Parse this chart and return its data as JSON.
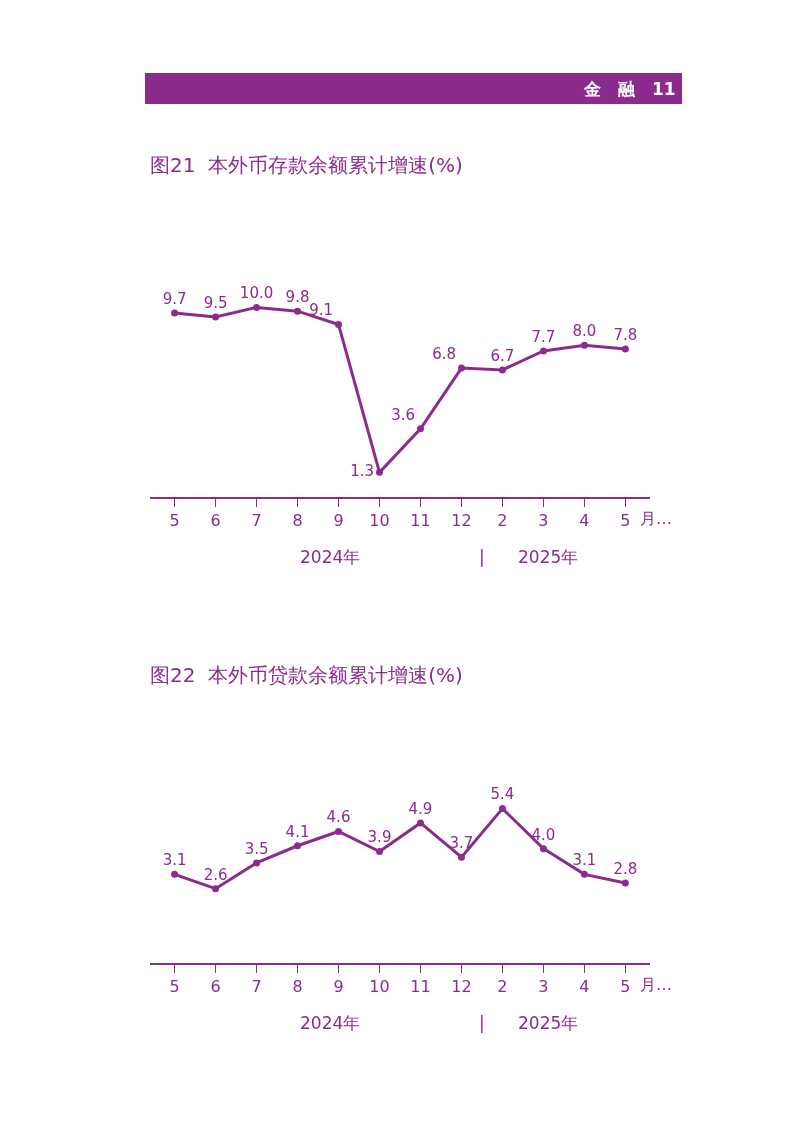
{
  "chart_data": [
    {
      "type": "other",
      "title": "金　融　11",
      "color": "#8b2c8c"
    },
    {
      "type": "line",
      "title": "图21  本外币存款余额累计增速(%)",
      "xlabel": "月…",
      "categories": [
        "5",
        "6",
        "7",
        "8",
        "9",
        "10",
        "11",
        "12",
        "2",
        "3",
        "4",
        "5"
      ],
      "series": [
        {
          "color": "#8b2c8c",
          "values": [
            9.7,
            9.5,
            10.0,
            9.8,
            9.1,
            1.3,
            3.6,
            6.8,
            6.7,
            7.7,
            8.0,
            7.8
          ],
          "value_labels": [
            "9.7",
            "9.5",
            "10.0",
            "9.8",
            "9.1",
            "1.3",
            "3.6",
            "6.8",
            "6.7",
            "7.7",
            "8.0",
            "7.8"
          ]
        }
      ],
      "marker": "circle",
      "line_style": "solid",
      "tick_labels": "x",
      "annotations": [
        "2024年",
        "|",
        "2025年"
      ]
    },
    {
      "type": "line",
      "title": "图22  本外币贷款余额累计增速(%)",
      "xlabel": "月…",
      "categories": [
        "5",
        "6",
        "7",
        "8",
        "9",
        "10",
        "11",
        "12",
        "2",
        "3",
        "4",
        "5"
      ],
      "series": [
        {
          "color": "#8b2c8c",
          "values": [
            3.1,
            2.6,
            3.5,
            4.1,
            4.6,
            3.9,
            4.9,
            3.7,
            5.4,
            4.0,
            3.1,
            2.8
          ],
          "value_labels": [
            "3.1",
            "2.6",
            "3.5",
            "4.1",
            "4.6",
            "3.9",
            "4.9",
            "3.7",
            "5.4",
            "4.0",
            "3.1",
            "2.8"
          ]
        }
      ],
      "marker": "circle",
      "line_style": "solid",
      "tick_labels": "x",
      "annotations": [
        "2024年",
        "|",
        "2025年"
      ]
    }
  ]
}
